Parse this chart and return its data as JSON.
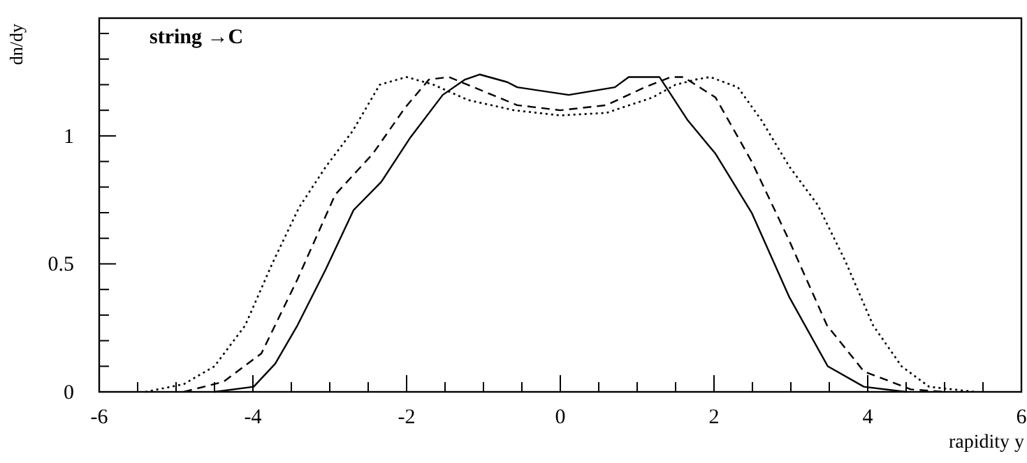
{
  "chart_data": {
    "type": "line",
    "xlabel": "rapidity y",
    "ylabel": "dn/dy",
    "annotations": [
      "string →C"
    ],
    "xlim": [
      -6,
      6
    ],
    "ylim": [
      0,
      1.46
    ],
    "xticks": [
      -6,
      {
        "value": -5.5,
        "label": null
      },
      {
        "value": -5,
        "label": null
      },
      {
        "value": -4.5,
        "label": null
      },
      -4,
      {
        "value": -3.5,
        "label": null
      },
      {
        "value": -3,
        "label": null
      },
      {
        "value": -2.5,
        "label": null
      },
      -2,
      {
        "value": -1.5,
        "label": null
      },
      {
        "value": -1,
        "label": null
      },
      {
        "value": -0.5,
        "label": null
      },
      0,
      {
        "value": 0.5,
        "label": null
      },
      {
        "value": 1,
        "label": null
      },
      {
        "value": 1.5,
        "label": null
      },
      2,
      {
        "value": 2.5,
        "label": null
      },
      {
        "value": 3,
        "label": null
      },
      {
        "value": 3.5,
        "label": null
      },
      4,
      {
        "value": 4.5,
        "label": null
      },
      {
        "value": 5,
        "label": null
      },
      {
        "value": 5.5,
        "label": null
      },
      6
    ],
    "yticks": [
      0,
      {
        "value": 0.1,
        "label": null
      },
      {
        "value": 0.2,
        "label": null
      },
      {
        "value": 0.3,
        "label": null
      },
      {
        "value": 0.4,
        "label": null
      },
      0.5,
      {
        "value": 0.6,
        "label": null
      },
      {
        "value": 0.7,
        "label": null
      },
      {
        "value": 0.8,
        "label": null
      },
      {
        "value": 0.9,
        "label": null
      },
      1,
      {
        "value": 1.1,
        "label": null
      },
      {
        "value": 1.2,
        "label": null
      },
      {
        "value": 1.3,
        "label": null
      },
      {
        "value": 1.4,
        "label": null
      }
    ],
    "grid": false,
    "marker": "none",
    "series": [
      {
        "color": "#000000",
        "line_style": "solid",
        "x": [
          -4.5,
          -3.99,
          -3.71,
          -3.42,
          -3.05,
          -2.69,
          -2.33,
          -1.96,
          -1.53,
          -1.24,
          -1.05,
          -0.69,
          -0.56,
          0.11,
          0.71,
          0.89,
          1.29,
          1.66,
          2.02,
          2.49,
          2.98,
          3.48,
          3.95,
          4.5
        ],
        "values": [
          0,
          0.02,
          0.11,
          0.26,
          0.48,
          0.71,
          0.82,
          0.99,
          1.16,
          1.22,
          1.24,
          1.21,
          1.19,
          1.16,
          1.19,
          1.23,
          1.23,
          1.06,
          0.93,
          0.7,
          0.37,
          0.1,
          0.02,
          0
        ]
      },
      {
        "color": "#000000",
        "line_style": "dashed",
        "x": [
          -4.9,
          -4.38,
          -3.89,
          -3.42,
          -2.93,
          -2.44,
          -2.02,
          -1.71,
          -1.45,
          -0.56,
          0,
          0.6,
          1.1,
          1.44,
          1.6,
          2.02,
          2.49,
          2.98,
          3.47,
          3.95,
          4.56,
          5
        ],
        "values": [
          0,
          0.04,
          0.15,
          0.44,
          0.77,
          0.93,
          1.11,
          1.22,
          1.23,
          1.12,
          1.1,
          1.12,
          1.19,
          1.23,
          1.23,
          1.15,
          0.9,
          0.59,
          0.26,
          0.08,
          0.01,
          0
        ]
      },
      {
        "color": "#000000",
        "line_style": "dotted",
        "x": [
          -5.4,
          -4.9,
          -4.5,
          -4.1,
          -3.75,
          -3.4,
          -3.05,
          -2.7,
          -2.35,
          -2,
          -1.65,
          -1.2,
          -0.6,
          0,
          0.6,
          1.2,
          1.5,
          1.76,
          1.95,
          2.31,
          2.62,
          2.98,
          3.35,
          3.71,
          4.07,
          4.44,
          4.8,
          5.4
        ],
        "values": [
          0,
          0.03,
          0.1,
          0.26,
          0.5,
          0.72,
          0.88,
          1.02,
          1.2,
          1.23,
          1.2,
          1.14,
          1.1,
          1.08,
          1.09,
          1.15,
          1.2,
          1.22,
          1.23,
          1.19,
          1.06,
          0.88,
          0.73,
          0.51,
          0.26,
          0.1,
          0.02,
          0
        ]
      }
    ]
  }
}
